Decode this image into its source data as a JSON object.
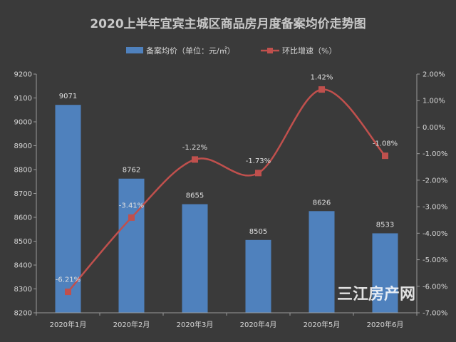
{
  "watermark": "三江房产网",
  "chart_data": {
    "type": "bar",
    "title": "2020上半年宜宾主城区商品房月度备案均价走势图",
    "categories": [
      "2020年1月",
      "2020年2月",
      "2020年3月",
      "2020年4月",
      "2020年5月",
      "2020年6月"
    ],
    "series": [
      {
        "name": "备案均价（单位：元/㎡）",
        "type": "bar",
        "axis": "left",
        "values": [
          9071,
          8762,
          8655,
          8505,
          8626,
          8533
        ],
        "labels": [
          "9071",
          "8762",
          "8655",
          "8505",
          "8626",
          "8533"
        ],
        "color": "#4f81bd"
      },
      {
        "name": "环比增速（%）",
        "type": "line",
        "axis": "right",
        "values": [
          -6.21,
          -3.41,
          -1.22,
          -1.73,
          1.42,
          -1.08
        ],
        "labels": [
          "-6.21%",
          "-3.41%",
          "-1.22%",
          "-1.73%",
          "1.42%",
          "-1.08%"
        ],
        "color": "#c0504d"
      }
    ],
    "y_left": {
      "min": 8200,
      "max": 9200,
      "ticks": [
        "9200",
        "9100",
        "9000",
        "8900",
        "8800",
        "8700",
        "8600",
        "8500",
        "8400",
        "8300",
        "8200"
      ]
    },
    "y_right": {
      "min": -7,
      "max": 2,
      "ticks": [
        "2.00%",
        "1.00%",
        "0.00%",
        "-1.00%",
        "-2.00%",
        "-3.00%",
        "-4.00%",
        "-5.00%",
        "-6.00%",
        "-7.00%"
      ]
    },
    "legend_position": "top",
    "grid": false
  }
}
